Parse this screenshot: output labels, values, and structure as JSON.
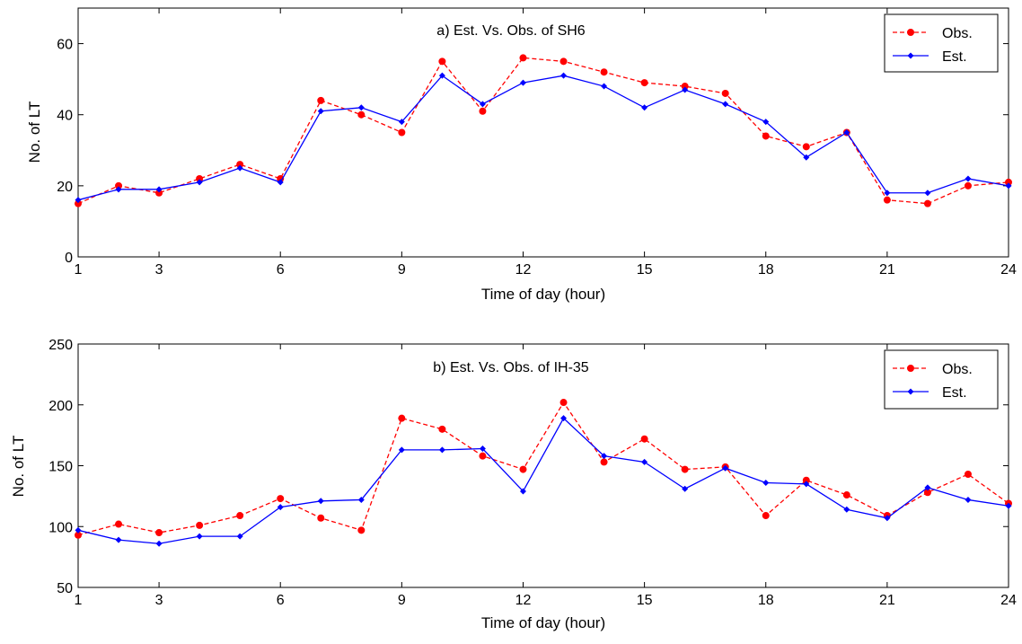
{
  "chart_data": [
    {
      "type": "line",
      "title": "a) Est. Vs. Obs. of SH6",
      "xlabel": "Time of day (hour)",
      "ylabel": "No. of LT",
      "xlim": [
        1,
        24
      ],
      "ylim": [
        0,
        70
      ],
      "xticks": [
        "1",
        "3",
        "6",
        "9",
        "12",
        "15",
        "18",
        "21",
        "24"
      ],
      "yticks": [
        "0",
        "20",
        "40",
        "60"
      ],
      "grid": false,
      "legend_position": "top-right",
      "x": [
        1,
        2,
        3,
        4,
        5,
        6,
        7,
        8,
        9,
        10,
        11,
        12,
        13,
        14,
        15,
        16,
        17,
        18,
        19,
        20,
        21,
        22,
        23,
        24
      ],
      "series": [
        {
          "name": "Obs.",
          "color": "#ff0000",
          "style": "dashed",
          "marker": "circle",
          "values": [
            15,
            20,
            18,
            22,
            26,
            22,
            44,
            40,
            35,
            55,
            41,
            56,
            55,
            52,
            49,
            48,
            46,
            34,
            31,
            35,
            16,
            15,
            20,
            21
          ]
        },
        {
          "name": "Est.",
          "color": "#0000ff",
          "style": "solid",
          "marker": "diamond",
          "values": [
            16,
            19,
            19,
            21,
            25,
            21,
            41,
            42,
            38,
            51,
            43,
            49,
            51,
            48,
            42,
            47,
            43,
            38,
            28,
            35,
            18,
            18,
            22,
            20
          ]
        }
      ]
    },
    {
      "type": "line",
      "title": "b) Est. Vs. Obs. of IH-35",
      "xlabel": "Time of day (hour)",
      "ylabel": "No. of LT",
      "xlim": [
        1,
        24
      ],
      "ylim": [
        50,
        250
      ],
      "xticks": [
        "1",
        "3",
        "6",
        "9",
        "12",
        "15",
        "18",
        "21",
        "24"
      ],
      "yticks": [
        "50",
        "100",
        "150",
        "200",
        "250"
      ],
      "grid": false,
      "legend_position": "top-right",
      "x": [
        1,
        2,
        3,
        4,
        5,
        6,
        7,
        8,
        9,
        10,
        11,
        12,
        13,
        14,
        15,
        16,
        17,
        18,
        19,
        20,
        21,
        22,
        23,
        24
      ],
      "series": [
        {
          "name": "Obs.",
          "color": "#ff0000",
          "style": "dashed",
          "marker": "circle",
          "values": [
            93,
            102,
            95,
            101,
            109,
            123,
            107,
            97,
            189,
            180,
            158,
            147,
            202,
            153,
            172,
            147,
            149,
            109,
            138,
            126,
            109,
            128,
            143,
            119
          ]
        },
        {
          "name": "Est.",
          "color": "#0000ff",
          "style": "solid",
          "marker": "diamond",
          "values": [
            97,
            89,
            86,
            92,
            92,
            116,
            121,
            122,
            163,
            163,
            164,
            129,
            189,
            158,
            153,
            131,
            148,
            136,
            135,
            114,
            107,
            132,
            122,
            117
          ]
        }
      ]
    }
  ]
}
